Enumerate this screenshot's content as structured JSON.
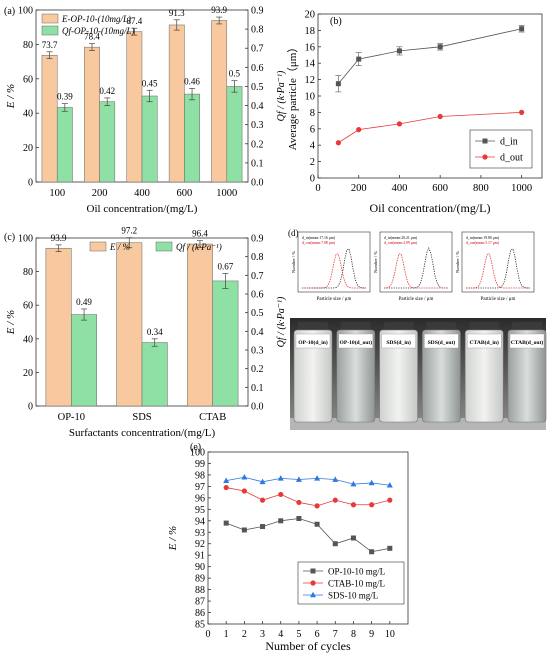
{
  "chart_data": [
    {
      "type": "bar",
      "panel": "(a)",
      "categories": [
        "100",
        "200",
        "400",
        "600",
        "1000"
      ],
      "series": [
        {
          "name": "E-OP-10-(10mg/L)",
          "axis": "left",
          "values": [
            73.7,
            78.4,
            87.4,
            91.3,
            93.9
          ],
          "labels": [
            "73.7",
            "78.4",
            "87.4",
            "91.3",
            "93.9"
          ],
          "error": [
            2,
            2,
            2,
            3,
            2
          ],
          "color": "#f8c99f"
        },
        {
          "name": "Qf-OP-10-(10mg/L)",
          "axis": "right",
          "values": [
            0.39,
            0.42,
            0.45,
            0.46,
            0.5
          ],
          "labels": [
            "0.39",
            "0.42",
            "0.45",
            "0.46",
            "0.5"
          ],
          "error": [
            0.02,
            0.02,
            0.03,
            0.03,
            0.03
          ],
          "color": "#8fe0a4"
        }
      ],
      "xlabel": "Oil concentration/(mg/L)",
      "ylabel_left": "E / %",
      "ylabel_right": "Qf / (k·Pa⁻¹)",
      "ylim_left": [
        0,
        100
      ],
      "ylim_right": [
        0,
        0.9
      ],
      "yticks_left": [
        "0",
        "20",
        "40",
        "60",
        "80",
        "100"
      ],
      "yticks_right": [
        "0.0",
        "0.1",
        "0.2",
        "0.3",
        "0.4",
        "0.5",
        "0.6",
        "0.7",
        "0.8",
        "0.9"
      ],
      "legend": "top-left"
    },
    {
      "type": "line",
      "panel": "(b)",
      "x": [
        100,
        200,
        400,
        600,
        1000
      ],
      "series": [
        {
          "name": "d_in",
          "values": [
            11.5,
            14.5,
            15.5,
            16.0,
            18.2
          ],
          "error": [
            1.0,
            0.8,
            0.5,
            0.4,
            0.4
          ],
          "color": "#555555",
          "marker": "square"
        },
        {
          "name": "d_out",
          "values": [
            4.3,
            5.9,
            6.6,
            7.5,
            8.0
          ],
          "color": "#e8393a",
          "marker": "circle"
        }
      ],
      "xlabel": "Oil concentration/(mg/L)",
      "ylabel": "Average particle（μm）",
      "xlim": [
        0,
        1100
      ],
      "ylim": [
        0,
        20
      ],
      "xticks": [
        "0",
        "200",
        "400",
        "600",
        "800",
        "1000"
      ],
      "yticks": [
        "0",
        "2",
        "4",
        "6",
        "8",
        "10",
        "12",
        "14",
        "16",
        "18",
        "20"
      ],
      "legend": "bottom-right"
    },
    {
      "type": "bar",
      "panel": "(c)",
      "categories": [
        "OP-10",
        "SDS",
        "CTAB"
      ],
      "series": [
        {
          "name": "E / %",
          "axis": "left",
          "values": [
            93.9,
            97.2,
            96.4
          ],
          "labels": [
            "93.9",
            "97.2",
            "96.4"
          ],
          "error": [
            2,
            3,
            2
          ],
          "color": "#f8c99f"
        },
        {
          "name": "Qf / (k·Pa⁻¹)",
          "axis": "right",
          "values": [
            0.49,
            0.34,
            0.67
          ],
          "labels": [
            "0.49",
            "0.34",
            "0.67"
          ],
          "error": [
            0.03,
            0.02,
            0.04
          ],
          "color": "#8fe0a4"
        }
      ],
      "xlabel": "Surfactants concentration/(mg/L)",
      "ylabel_left": "E / %",
      "ylabel_right": "Qf / (k·Pa⁻¹)",
      "ylim_left": [
        0,
        100
      ],
      "ylim_right": [
        0,
        0.9
      ],
      "yticks_left": [
        "0",
        "20",
        "40",
        "60",
        "80",
        "100"
      ],
      "yticks_right": [
        "0.0",
        "0.1",
        "0.2",
        "0.3",
        "0.4",
        "0.5",
        "0.6",
        "0.7",
        "0.8",
        "0.9"
      ],
      "legend": "top"
    },
    {
      "type": "line",
      "panel": "(e)",
      "x": [
        1,
        2,
        3,
        4,
        5,
        6,
        7,
        8,
        9,
        10
      ],
      "series": [
        {
          "name": "OP-10-10 mg/L",
          "values": [
            93.8,
            93.2,
            93.5,
            94.0,
            94.2,
            93.7,
            92.0,
            92.5,
            91.3,
            91.6
          ],
          "color": "#555555",
          "marker": "square"
        },
        {
          "name": "CTAB-10 mg/L",
          "values": [
            96.9,
            96.6,
            95.8,
            96.3,
            95.6,
            95.3,
            95.8,
            95.4,
            95.4,
            95.8
          ],
          "color": "#e8393a",
          "marker": "circle"
        },
        {
          "name": "SDS-10 mg/L",
          "values": [
            97.5,
            97.8,
            97.4,
            97.7,
            97.6,
            97.7,
            97.6,
            97.2,
            97.3,
            97.1
          ],
          "color": "#2f78e0",
          "marker": "triangle"
        }
      ],
      "xlabel": "Number of cycles",
      "ylabel": "E / %",
      "xlim": [
        0,
        11
      ],
      "ylim": [
        85,
        100
      ],
      "xticks": [
        "0",
        "1",
        "2",
        "3",
        "4",
        "5",
        "6",
        "7",
        "8",
        "9",
        "10"
      ],
      "yticks": [
        "85",
        "86",
        "87",
        "88",
        "89",
        "90",
        "91",
        "92",
        "93",
        "94",
        "95",
        "96",
        "97",
        "98",
        "99",
        "100"
      ],
      "legend": "bottom-right"
    }
  ],
  "photo_panel": {
    "panel": "(d)",
    "plots": [
      {
        "legend": [
          "d_in(mean:17.16 μm)",
          "d_out(mean:7.98 μm)"
        ]
      },
      {
        "legend": [
          "d_in(mean:20.21 μm)",
          "d_out(mean:2.09 μm)"
        ]
      },
      {
        "legend": [
          "d_in(mean:19.80 μm)",
          "d_out(mean:5.17 μm)"
        ]
      }
    ],
    "xlabel": "Particle size / μm",
    "ylabel": "Number / %",
    "bottles": [
      "OP-10(d_in)",
      "OP-10(d_out)",
      "SDS(d_in)",
      "SDS(d_out)",
      "CTAB(d_in)",
      "CTAB(d_out)"
    ]
  }
}
